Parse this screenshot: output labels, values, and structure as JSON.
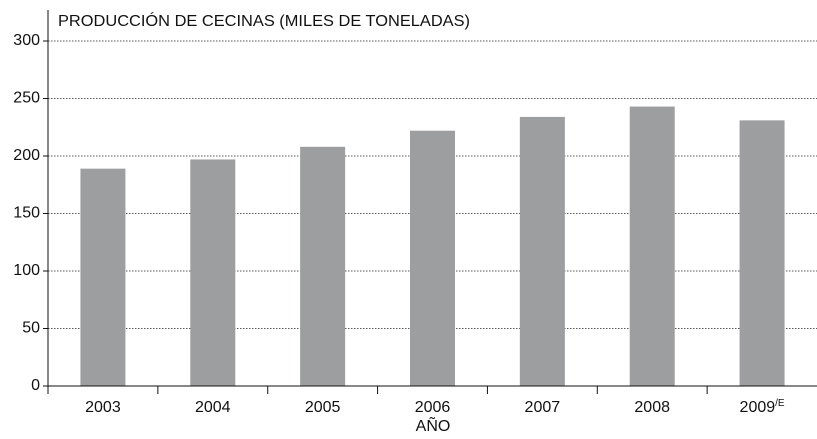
{
  "chart_data": {
    "type": "bar",
    "title": "PRODUCCIÓN DE CECINAS (MILES DE TONELADAS)",
    "x_label": "AÑO",
    "categories": [
      "2003",
      "2004",
      "2005",
      "2006",
      "2007",
      "2008",
      "2009/E"
    ],
    "values": [
      189,
      197,
      208,
      222,
      234,
      243,
      231
    ],
    "color": "#9d9e9f",
    "ylim": [
      0,
      300
    ],
    "yticks": [
      0,
      50,
      100,
      150,
      200,
      250,
      300
    ],
    "grid": true
  }
}
